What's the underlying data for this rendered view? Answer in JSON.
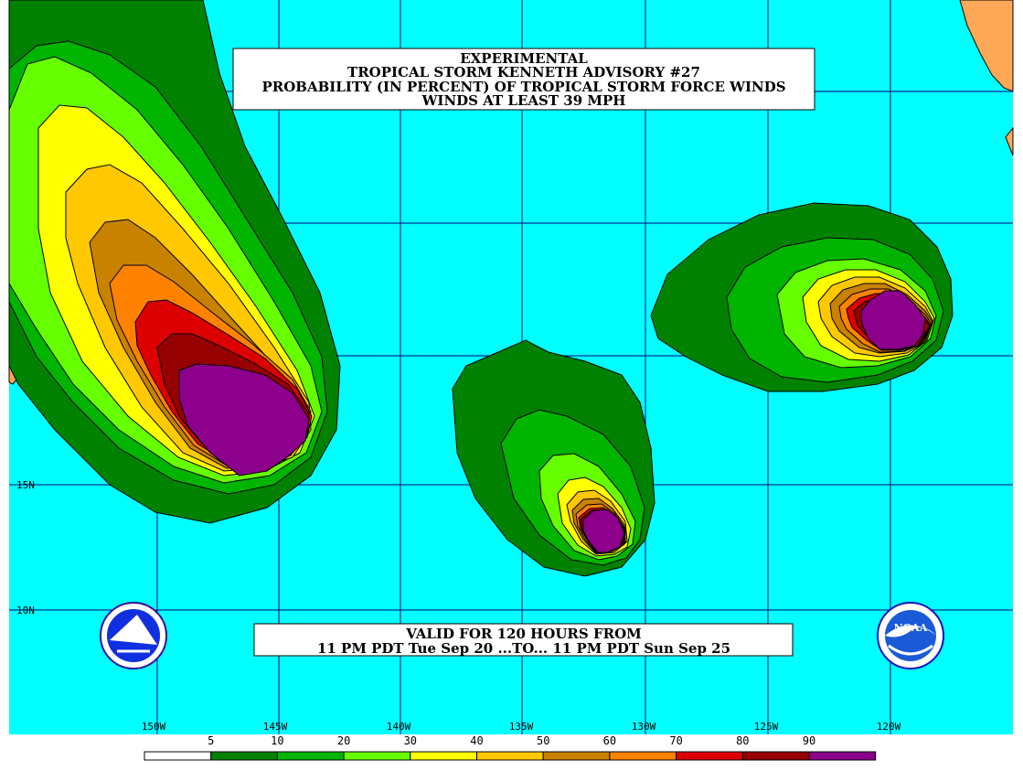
{
  "title": {
    "line1": "EXPERIMENTAL",
    "line2": "TROPICAL STORM KENNETH ADVISORY #27",
    "line3": "PROBABILITY (IN PERCENT) OF TROPICAL STORM FORCE WINDS",
    "line4": "WINDS AT LEAST 39 MPH"
  },
  "valid": {
    "line1": "VALID FOR 120 HOURS FROM",
    "line2": "11 PM PDT Tue Sep 20 ...TO... 11 PM PDT Sun Sep 25"
  },
  "lat_labels": [
    "15N",
    "10N"
  ],
  "lon_labels": [
    "150W",
    "145W",
    "140W",
    "135W",
    "130W",
    "125W",
    "120W"
  ],
  "legend": {
    "labels": [
      "5",
      "10",
      "20",
      "30",
      "40",
      "50",
      "60",
      "70",
      "80",
      "90"
    ],
    "colors": [
      "#ffffff",
      "#008200",
      "#00b400",
      "#66ff00",
      "#ffff00",
      "#ffc800",
      "#c88200",
      "#ff8200",
      "#dc0000",
      "#960000",
      "#8c008c"
    ]
  },
  "colors": {
    "ocean": "#00ffff",
    "land": "#ffa858",
    "grid": "#000080"
  },
  "logos": {
    "left": "nws-seal-icon",
    "right": "noaa-logo-icon"
  }
}
